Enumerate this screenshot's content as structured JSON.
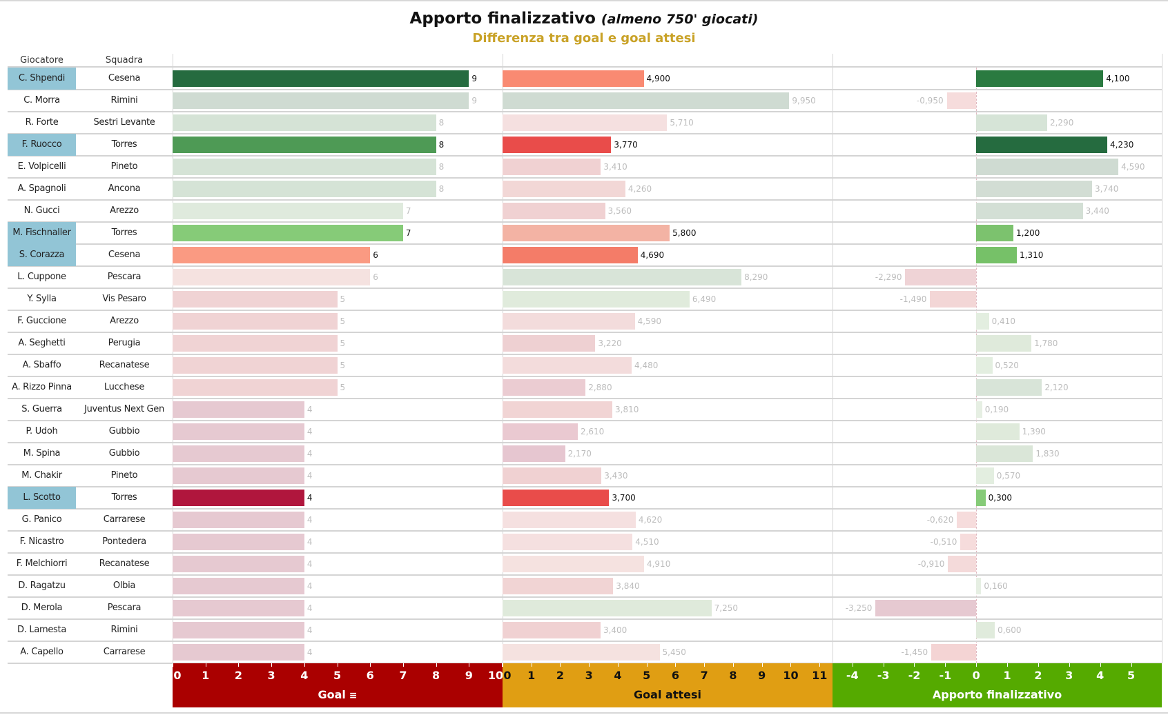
{
  "header": {
    "title": "Apporto finalizzativo",
    "title_note": "(almeno 750' giocati)",
    "subtitle": "Differenza tra goal e goal attesi",
    "col_player": "Giocatore",
    "col_team": "Squadra"
  },
  "chart_data": {
    "type": "bar",
    "orientation": "horizontal",
    "title": "Apporto finalizzativo (almeno 750' giocati)",
    "subtitle": "Differenza tra goal e goal attesi",
    "highlight_color": "#92c5d6",
    "panels": [
      {
        "key": "goal",
        "label": "Goal",
        "sort_icon": "sort-descending-icon",
        "range": [
          0,
          10.02
        ],
        "ticks": [
          0,
          1,
          2,
          3,
          4,
          5,
          6,
          7,
          8,
          9,
          10
        ],
        "band_color": "#aa0000",
        "tick_text_color": "#ffffff"
      },
      {
        "key": "xg",
        "label": "Goal attesi",
        "range": [
          0,
          11.45
        ],
        "ticks": [
          0,
          1,
          2,
          3,
          4,
          5,
          6,
          7,
          8,
          9,
          10,
          11
        ],
        "band_color": "#e09e13",
        "tick_text_color": "#111111"
      },
      {
        "key": "diff",
        "label": "Apporto finalizzativo",
        "range": [
          -4.64,
          5.99
        ],
        "ticks": [
          -4,
          -3,
          -2,
          -1,
          0,
          1,
          2,
          3,
          4,
          5
        ],
        "band_color": "#55aa00",
        "tick_text_color": "#ffffff"
      }
    ],
    "rows": [
      {
        "player": "C. Shpendi",
        "team": "Cesena",
        "goal": 9,
        "xg": 4.9,
        "diff": 4.1,
        "highlight": true,
        "colors": [
          "#256b3f",
          "#f98a72",
          "#2a7a40"
        ]
      },
      {
        "player": "C. Morra",
        "team": "Rimini",
        "goal": 9,
        "xg": 9.95,
        "diff": -0.95,
        "highlight": false,
        "colors": [
          "#cfdbd2",
          "#cfdbd2",
          "#f6dcdc"
        ]
      },
      {
        "player": "R. Forte",
        "team": "Sestri Levante",
        "goal": 8,
        "xg": 5.71,
        "diff": 2.29,
        "highlight": false,
        "colors": [
          "#d5e3d6",
          "#f5e0e0",
          "#d6e4d7"
        ]
      },
      {
        "player": "F. Ruocco",
        "team": "Torres",
        "goal": 8,
        "xg": 3.77,
        "diff": 4.23,
        "highlight": true,
        "colors": [
          "#4e9a55",
          "#e94c4a",
          "#256b3f"
        ]
      },
      {
        "player": "E. Volpicelli",
        "team": "Pineto",
        "goal": 8,
        "xg": 3.41,
        "diff": 4.59,
        "highlight": false,
        "colors": [
          "#d5e3d6",
          "#f0d1d2",
          "#cfdbd2"
        ]
      },
      {
        "player": "A. Spagnoli",
        "team": "Ancona",
        "goal": 8,
        "xg": 4.26,
        "diff": 3.74,
        "highlight": false,
        "colors": [
          "#d5e3d6",
          "#f2d7d6",
          "#d2ddd4"
        ]
      },
      {
        "player": "N. Gucci",
        "team": "Arezzo",
        "goal": 7,
        "xg": 3.56,
        "diff": 3.44,
        "highlight": false,
        "colors": [
          "#dfeadd",
          "#f0d1d2",
          "#d3dfd5"
        ]
      },
      {
        "player": "M. Fischnaller",
        "team": "Torres",
        "goal": 7,
        "xg": 5.8,
        "diff": 1.2,
        "highlight": true,
        "colors": [
          "#86cb78",
          "#f3b3a4",
          "#7cc26e"
        ]
      },
      {
        "player": "S. Corazza",
        "team": "Cesena",
        "goal": 6,
        "xg": 4.69,
        "diff": 1.31,
        "highlight": true,
        "colors": [
          "#fa9a82",
          "#f47c68",
          "#76c168"
        ]
      },
      {
        "player": "L. Cuppone",
        "team": "Pescara",
        "goal": 6,
        "xg": 8.29,
        "diff": -2.29,
        "highlight": false,
        "colors": [
          "#f5e2e0",
          "#d8e4d8",
          "#efd3d6"
        ]
      },
      {
        "player": "Y. Sylla",
        "team": "Vis Pesaro",
        "goal": 5,
        "xg": 6.49,
        "diff": -1.49,
        "highlight": false,
        "colors": [
          "#f0d3d4",
          "#e0ebdc",
          "#f3d6d6"
        ]
      },
      {
        "player": "F. Guccione",
        "team": "Arezzo",
        "goal": 5,
        "xg": 4.59,
        "diff": 0.41,
        "highlight": false,
        "colors": [
          "#f0d3d4",
          "#f3dcdc",
          "#e3eee0"
        ]
      },
      {
        "player": "A. Seghetti",
        "team": "Perugia",
        "goal": 5,
        "xg": 3.22,
        "diff": 1.78,
        "highlight": false,
        "colors": [
          "#f0d3d4",
          "#eed0d2",
          "#dfeadb"
        ]
      },
      {
        "player": "A. Sbaffo",
        "team": "Recanatese",
        "goal": 5,
        "xg": 4.48,
        "diff": 0.52,
        "highlight": false,
        "colors": [
          "#f0d3d4",
          "#f3dcdc",
          "#e3eee0"
        ]
      },
      {
        "player": "A. Rizzo Pinna",
        "team": "Lucchese",
        "goal": 5,
        "xg": 2.88,
        "diff": 2.12,
        "highlight": false,
        "colors": [
          "#f0d3d4",
          "#ebccd2",
          "#d8e4d8"
        ]
      },
      {
        "player": "S. Guerra",
        "team": "Juventus Next Gen",
        "goal": 4,
        "xg": 3.81,
        "diff": 0.19,
        "highlight": false,
        "colors": [
          "#e6c9d1",
          "#f1d4d4",
          "#e6efe3"
        ]
      },
      {
        "player": "P. Udoh",
        "team": "Gubbio",
        "goal": 4,
        "xg": 2.61,
        "diff": 1.39,
        "highlight": false,
        "colors": [
          "#e6c9d1",
          "#eac9d1",
          "#dfeadb"
        ]
      },
      {
        "player": "M. Spina",
        "team": "Gubbio",
        "goal": 4,
        "xg": 2.17,
        "diff": 1.83,
        "highlight": false,
        "colors": [
          "#e6c9d1",
          "#e6c6d0",
          "#dae6d8"
        ]
      },
      {
        "player": "M. Chakir",
        "team": "Pineto",
        "goal": 4,
        "xg": 3.43,
        "diff": 0.57,
        "highlight": false,
        "colors": [
          "#e6c9d1",
          "#f0d1d2",
          "#e3eee0"
        ]
      },
      {
        "player": "L. Scotto",
        "team": "Torres",
        "goal": 4,
        "xg": 3.7,
        "diff": 0.3,
        "highlight": true,
        "colors": [
          "#b0163d",
          "#e94c4a",
          "#86cb78"
        ]
      },
      {
        "player": "G. Panico",
        "team": "Carrarese",
        "goal": 4,
        "xg": 4.62,
        "diff": -0.62,
        "highlight": false,
        "colors": [
          "#e6c9d1",
          "#f5e0e0",
          "#f6dcdc"
        ]
      },
      {
        "player": "F. Nicastro",
        "team": "Pontedera",
        "goal": 4,
        "xg": 4.51,
        "diff": -0.51,
        "highlight": false,
        "colors": [
          "#e6c9d1",
          "#f5e0e0",
          "#f6dcdc"
        ]
      },
      {
        "player": "F. Melchiorri",
        "team": "Recanatese",
        "goal": 4,
        "xg": 4.91,
        "diff": -0.91,
        "highlight": false,
        "colors": [
          "#e6c9d1",
          "#f5e2e0",
          "#f4dada"
        ]
      },
      {
        "player": "D. Ragatzu",
        "team": "Olbia",
        "goal": 4,
        "xg": 3.84,
        "diff": 0.16,
        "highlight": false,
        "colors": [
          "#e6c9d1",
          "#f1d4d4",
          "#e6efe3"
        ]
      },
      {
        "player": "D. Merola",
        "team": "Pescara",
        "goal": 4,
        "xg": 7.25,
        "diff": -3.25,
        "highlight": false,
        "colors": [
          "#e6c9d1",
          "#dfeadb",
          "#e6c9d1"
        ]
      },
      {
        "player": "D. Lamesta",
        "team": "Rimini",
        "goal": 4,
        "xg": 3.4,
        "diff": 0.6,
        "highlight": false,
        "colors": [
          "#e6c9d1",
          "#f0d1d2",
          "#e0ebdc"
        ]
      },
      {
        "player": "A. Capello",
        "team": "Carrarese",
        "goal": 4,
        "xg": 5.45,
        "diff": -1.45,
        "highlight": false,
        "colors": [
          "#e6c9d1",
          "#f5e2e0",
          "#f4d4d4"
        ]
      }
    ]
  }
}
